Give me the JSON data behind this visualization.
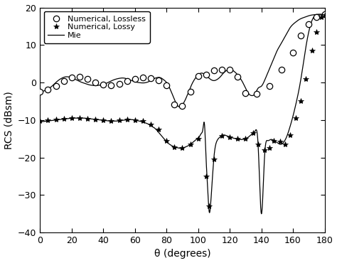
{
  "title": "",
  "xlabel": "θ (degrees)",
  "ylabel": "RCS (dBsm)",
  "xlim": [
    0,
    180
  ],
  "ylim": [
    -40,
    20
  ],
  "xticks": [
    0,
    20,
    40,
    60,
    80,
    100,
    120,
    140,
    160,
    180
  ],
  "yticks": [
    -40,
    -30,
    -20,
    -10,
    0,
    10,
    20
  ],
  "legend": [
    "Numerical, Lossless",
    "Numerical, Lossy",
    "Mie"
  ],
  "background_color": "#ffffff",
  "figsize": [
    4.74,
    3.7
  ],
  "dpi": 100,
  "mie_lossless_theta": [
    0,
    2,
    4,
    6,
    8,
    10,
    12,
    14,
    16,
    18,
    20,
    22,
    24,
    26,
    28,
    30,
    32,
    34,
    36,
    38,
    40,
    42,
    44,
    46,
    48,
    50,
    52,
    54,
    56,
    58,
    60,
    62,
    64,
    66,
    68,
    70,
    72,
    74,
    76,
    78,
    80,
    82,
    84,
    86,
    88,
    90,
    92,
    94,
    96,
    98,
    100,
    102,
    104,
    106,
    108,
    110,
    112,
    114,
    116,
    118,
    120,
    122,
    124,
    126,
    128,
    130,
    132,
    134,
    136,
    138,
    140,
    142,
    144,
    146,
    148,
    150,
    152,
    154,
    156,
    158,
    160,
    162,
    164,
    166,
    168,
    170,
    172,
    174,
    176,
    178,
    180
  ],
  "mie_lossless_rcs": [
    -2.5,
    -2.3,
    -2.0,
    -1.5,
    -0.8,
    0.0,
    0.7,
    1.2,
    1.5,
    1.5,
    1.3,
    0.9,
    0.5,
    0.1,
    -0.2,
    -0.5,
    -0.7,
    -0.8,
    -0.8,
    -0.7,
    -0.5,
    -0.2,
    0.2,
    0.6,
    0.9,
    1.1,
    1.2,
    1.1,
    0.8,
    0.5,
    0.2,
    0.0,
    -0.1,
    -0.1,
    0.1,
    0.5,
    1.0,
    1.3,
    1.3,
    0.8,
    0.0,
    -1.5,
    -3.5,
    -5.5,
    -6.5,
    -6.0,
    -4.5,
    -2.5,
    -0.5,
    1.0,
    2.0,
    2.5,
    2.2,
    1.5,
    0.8,
    0.5,
    0.8,
    1.5,
    2.5,
    3.2,
    3.5,
    3.2,
    2.5,
    1.5,
    0.2,
    -1.5,
    -3.0,
    -3.5,
    -3.0,
    -1.5,
    -1.0,
    0.5,
    2.5,
    4.5,
    6.5,
    8.5,
    10.0,
    11.5,
    13.0,
    14.5,
    15.5,
    16.2,
    16.8,
    17.2,
    17.5,
    17.8,
    18.0,
    18.1,
    18.2,
    18.2,
    18.2
  ],
  "mie_lossy_theta": [
    0,
    2,
    4,
    6,
    8,
    10,
    12,
    14,
    16,
    18,
    20,
    22,
    24,
    26,
    28,
    30,
    32,
    34,
    36,
    38,
    40,
    42,
    44,
    46,
    48,
    50,
    52,
    54,
    56,
    58,
    60,
    62,
    64,
    66,
    68,
    70,
    72,
    74,
    76,
    78,
    80,
    82,
    84,
    86,
    88,
    90,
    92,
    94,
    96,
    98,
    100,
    101,
    102,
    103,
    104,
    105,
    106,
    107,
    108,
    110,
    112,
    114,
    116,
    118,
    120,
    122,
    124,
    126,
    128,
    130,
    132,
    134,
    136,
    138,
    140,
    142,
    144,
    146,
    148,
    150,
    152,
    154,
    156,
    158,
    160,
    162,
    164,
    166,
    168,
    170,
    172,
    174,
    176,
    178,
    180
  ],
  "mie_lossy_rcs": [
    -10.5,
    -10.4,
    -10.3,
    -10.2,
    -10.1,
    -10.0,
    -9.9,
    -9.8,
    -9.7,
    -9.6,
    -9.5,
    -9.5,
    -9.5,
    -9.5,
    -9.5,
    -9.6,
    -9.7,
    -9.8,
    -9.9,
    -10.0,
    -10.1,
    -10.2,
    -10.3,
    -10.3,
    -10.3,
    -10.2,
    -10.1,
    -10.0,
    -9.9,
    -9.9,
    -10.0,
    -10.2,
    -10.4,
    -10.7,
    -11.0,
    -11.5,
    -12.0,
    -12.8,
    -13.8,
    -14.8,
    -15.8,
    -16.5,
    -17.0,
    -17.3,
    -17.5,
    -17.5,
    -17.2,
    -16.8,
    -16.2,
    -15.5,
    -14.8,
    -14.3,
    -13.6,
    -12.5,
    -11.0,
    -20.0,
    -28.0,
    -34.5,
    -32.0,
    -20.0,
    -15.5,
    -14.5,
    -14.0,
    -14.2,
    -14.5,
    -14.8,
    -15.0,
    -15.2,
    -15.2,
    -15.0,
    -14.5,
    -13.8,
    -13.0,
    -17.0,
    -35.0,
    -20.0,
    -15.5,
    -15.2,
    -15.5,
    -16.0,
    -16.5,
    -16.0,
    -14.5,
    -12.0,
    -9.0,
    -5.5,
    -1.5,
    3.5,
    9.0,
    13.5,
    16.5,
    17.8,
    18.0,
    18.0,
    18.1
  ],
  "num_lossless_theta": [
    0,
    5,
    10,
    15,
    20,
    25,
    30,
    35,
    40,
    45,
    50,
    55,
    60,
    65,
    70,
    75,
    80,
    85,
    90,
    95,
    100,
    105,
    110,
    115,
    120,
    125,
    130,
    137,
    145,
    153,
    160,
    165,
    170,
    175,
    180
  ],
  "num_lossless_rcs": [
    -2.5,
    -1.8,
    -1.0,
    0.3,
    1.3,
    1.5,
    0.9,
    0.1,
    -0.5,
    -0.7,
    -0.4,
    0.3,
    1.0,
    1.3,
    1.2,
    0.6,
    -0.8,
    -5.8,
    -6.2,
    -2.5,
    1.8,
    2.0,
    3.2,
    3.4,
    3.4,
    1.5,
    -2.8,
    -3.0,
    -1.0,
    3.5,
    8.0,
    12.5,
    15.5,
    17.5,
    18.2
  ],
  "num_lossy_theta": [
    0,
    5,
    10,
    15,
    20,
    25,
    30,
    35,
    40,
    45,
    50,
    55,
    60,
    65,
    70,
    75,
    80,
    85,
    90,
    95,
    100,
    105,
    107,
    110,
    115,
    120,
    125,
    130,
    135,
    138,
    142,
    145,
    148,
    152,
    155,
    158,
    162,
    165,
    168,
    172,
    175,
    178,
    180
  ],
  "num_lossy_rcs": [
    -10.3,
    -10.1,
    -9.9,
    -9.6,
    -9.5,
    -9.5,
    -9.6,
    -9.8,
    -10.0,
    -10.2,
    -10.1,
    -9.9,
    -10.0,
    -10.3,
    -11.2,
    -12.5,
    -15.5,
    -17.2,
    -17.5,
    -16.5,
    -15.0,
    -25.0,
    -33.0,
    -20.5,
    -14.2,
    -14.5,
    -15.0,
    -15.0,
    -13.5,
    -16.5,
    -18.0,
    -17.5,
    -15.5,
    -15.8,
    -16.5,
    -14.0,
    -9.5,
    -5.0,
    1.0,
    8.5,
    13.5,
    17.5,
    18.0
  ]
}
